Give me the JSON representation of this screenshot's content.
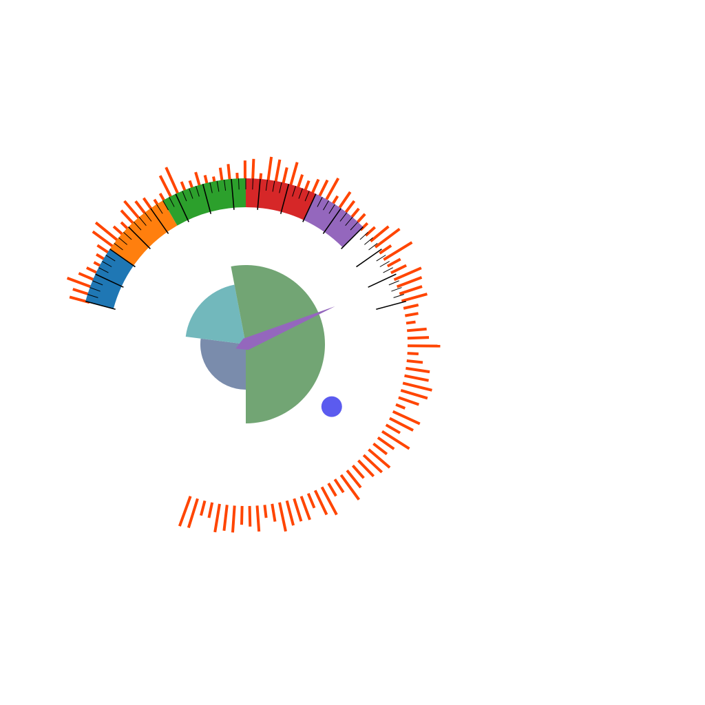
{
  "colors": {
    "background": "#ffffff",
    "ticks_minor": "#000000",
    "outer_bars": "#ff4500",
    "needle": "#9467bd",
    "marker_dot": "#5b5bef"
  },
  "chart_data": [
    {
      "type": "gauge",
      "title": "",
      "needle_angle_deg": 67,
      "scale": {
        "start_angle_deg": -75,
        "end_angle_deg": 200,
        "ticks_end_angle_deg": 75
      },
      "bands": [
        {
          "from_deg": -75,
          "to_deg": -55,
          "color": "#1f77b4"
        },
        {
          "from_deg": -55,
          "to_deg": -30,
          "color": "#ff7f0e"
        },
        {
          "from_deg": -30,
          "to_deg": 0,
          "color": "#2ca02c"
        },
        {
          "from_deg": 0,
          "to_deg": 25,
          "color": "#d62728"
        },
        {
          "from_deg": 25,
          "to_deg": 45,
          "color": "#9467bd"
        }
      ],
      "marker": {
        "angle_deg": 126,
        "radius_fraction": 0.64,
        "color": "#5b5bef"
      }
    },
    {
      "type": "polar_bar",
      "series": [
        {
          "values": [
            0.46,
            0.44,
            0.64,
            0.44,
            0.33,
            0.24,
            0.28,
            0.37,
            0.63,
            0.7,
            0.34,
            0.28,
            0.47,
            0.58,
            0.42,
            0.37,
            0.21,
            0.26,
            0.61,
            0.72,
            0.29,
            0.25,
            0.39,
            0.27,
            0.2,
            0.37,
            0.43,
            0.22,
            0.49,
            0.53,
            0.22,
            0.61,
            0.58,
            0.44,
            0.61,
            0.38,
            0.3,
            0.41,
            0.48,
            0.63,
            0.28,
            0.51,
            0.4,
            0.33,
            0.33,
            0.22,
            0.28,
            0.52,
            0.68,
            0.31,
            0.74,
            0.33,
            0.38,
            0.66,
            0.59,
            0.53,
            0.59,
            0.34,
            0.3,
            0.21,
            0.44,
            0.48,
            0.73,
            0.25,
            0.36,
            0.54,
            0.55,
            0.67,
            0.62,
            0.48,
            0.22,
            0.66,
            0.59,
            0.36,
            0.72,
            0.44,
            0.38,
            0.62,
            0.56,
            0.49,
            0.37,
            0.49,
            0.68,
            0.35,
            0.33,
            0.7,
            0.6,
            0.35,
            0.56,
            0.53,
            0.57,
            0.66,
            0.4,
            0.29,
            0.58,
            0.46,
            0.42,
            0.6,
            0.58,
            0.64,
            0.35,
            0.34,
            0.68,
            0.71
          ],
          "color": "#ff4500"
        }
      ]
    },
    {
      "type": "pie",
      "slices": [
        {
          "value": 0.27,
          "color": "#7a8cac"
        },
        {
          "value": 0.2,
          "color": "#72b8bc"
        },
        {
          "value": 0.53,
          "color": "#72a574"
        }
      ]
    }
  ]
}
